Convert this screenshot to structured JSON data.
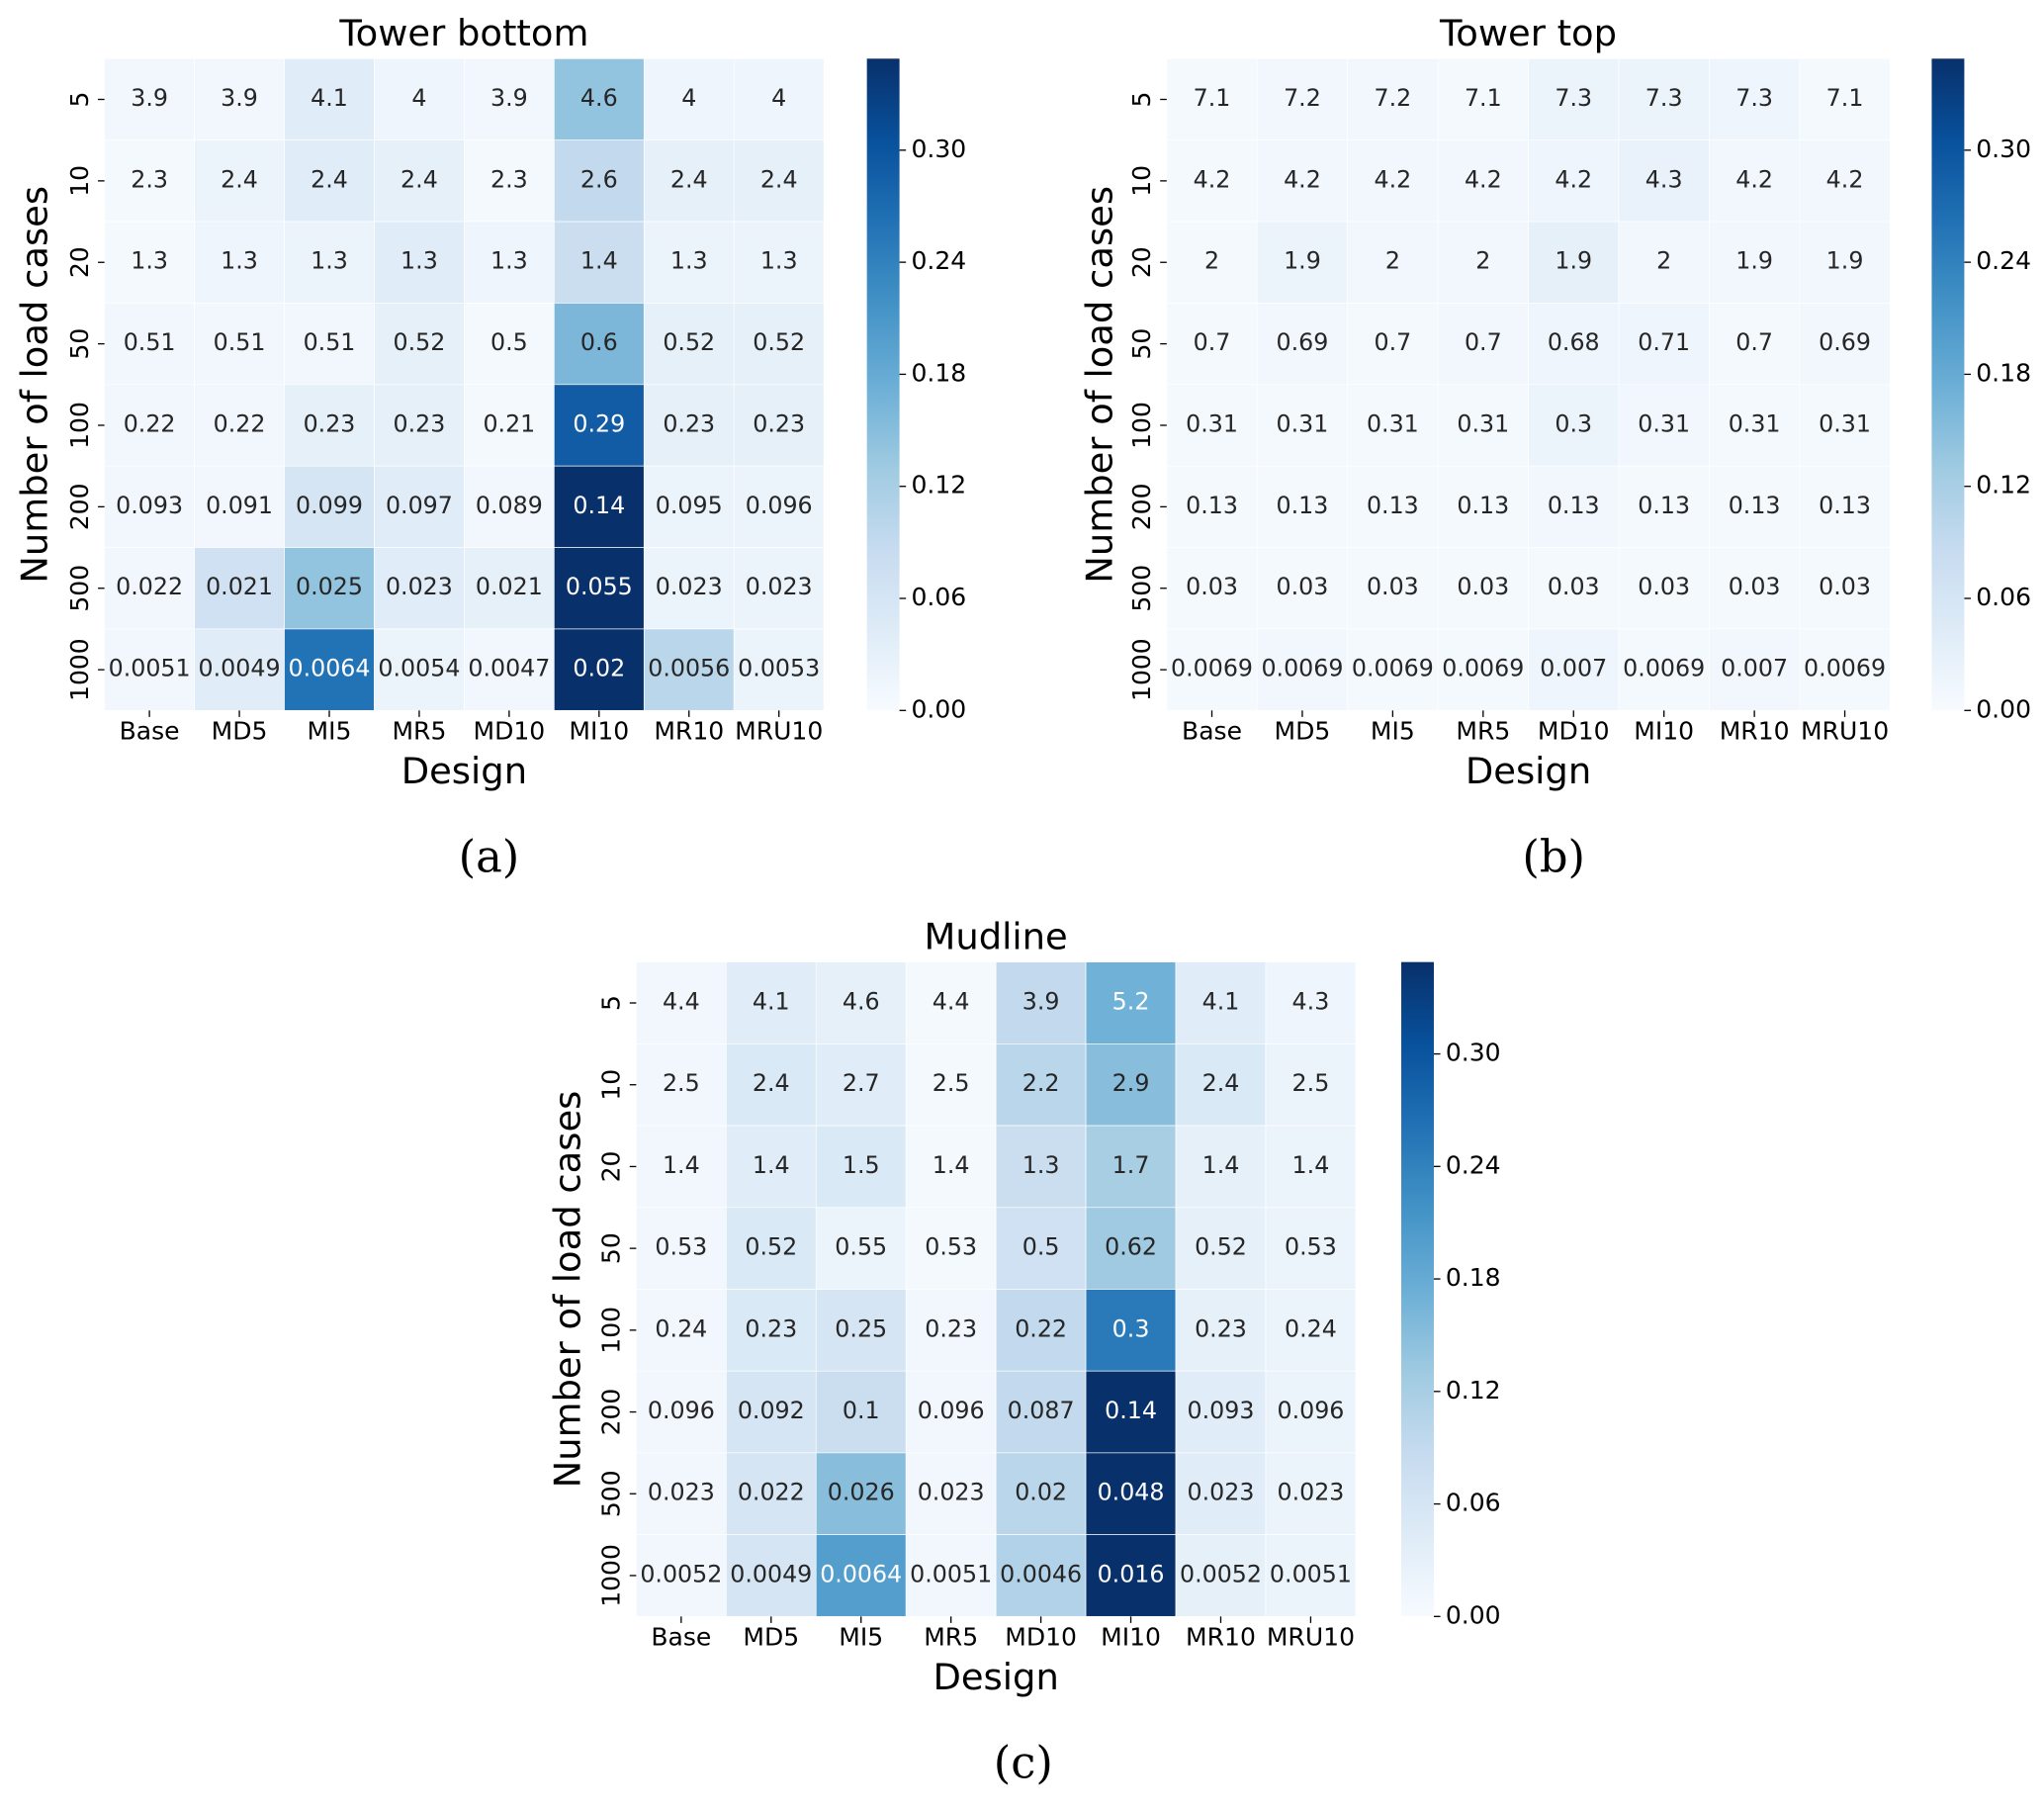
{
  "chart_data": [
    {
      "type": "heatmap",
      "title": "Tower bottom",
      "x_label": "Design",
      "y_label": "Number of load cases",
      "caption": "(a)",
      "categories": [
        "Base",
        "MD5",
        "MI5",
        "MR5",
        "MD10",
        "MI10",
        "MR10",
        "MRU10"
      ],
      "y_categories": [
        "5",
        "10",
        "20",
        "50",
        "100",
        "200",
        "500",
        "1000"
      ],
      "values": [
        [
          3.9,
          3.9,
          4.1,
          4,
          3.9,
          4.6,
          4,
          4
        ],
        [
          2.3,
          2.4,
          2.4,
          2.4,
          2.3,
          2.6,
          2.4,
          2.4
        ],
        [
          1.3,
          1.3,
          1.3,
          1.3,
          1.3,
          1.4,
          1.3,
          1.3
        ],
        [
          0.51,
          0.51,
          0.51,
          0.52,
          0.5,
          0.6,
          0.52,
          0.52
        ],
        [
          0.22,
          0.22,
          0.23,
          0.23,
          0.21,
          0.29,
          0.23,
          0.23
        ],
        [
          0.093,
          0.091,
          0.099,
          0.097,
          0.089,
          0.14,
          0.095,
          0.096
        ],
        [
          0.022,
          0.021,
          0.025,
          0.023,
          0.021,
          0.055,
          0.023,
          0.023
        ],
        [
          0.0051,
          0.0049,
          0.0064,
          0.0054,
          0.0047,
          0.02,
          0.0056,
          0.0053
        ]
      ],
      "color_values": [
        [
          0.01,
          0.01,
          0.04,
          0.015,
          0.01,
          0.14,
          0.015,
          0.015
        ],
        [
          0.005,
          0.02,
          0.04,
          0.03,
          0.005,
          0.09,
          0.03,
          0.03
        ],
        [
          0.005,
          0.015,
          0.02,
          0.04,
          0.015,
          0.08,
          0.02,
          0.02
        ],
        [
          0.01,
          0.01,
          0.01,
          0.03,
          0.005,
          0.16,
          0.03,
          0.03
        ],
        [
          0.01,
          0.01,
          0.03,
          0.03,
          0.005,
          0.29,
          0.03,
          0.03
        ],
        [
          0.01,
          0.01,
          0.06,
          0.04,
          0.01,
          0.35,
          0.02,
          0.02
        ],
        [
          0.01,
          0.07,
          0.14,
          0.04,
          0.03,
          0.35,
          0.02,
          0.02
        ],
        [
          0.01,
          0.04,
          0.26,
          0.02,
          0.01,
          0.35,
          0.1,
          0.02
        ]
      ],
      "clim": [
        0,
        0.349
      ],
      "cticks": [
        {
          "value": 0,
          "label": "0.00"
        },
        0.06,
        0.12,
        0.18,
        0.24,
        {
          "value": 0.3,
          "label": "0.30"
        }
      ],
      "colormap": [
        "#f7fbff",
        "#deebf7",
        "#c6dbef",
        "#9ecae1",
        "#6baed6",
        "#4292c6",
        "#2171b5",
        "#08519c",
        "#08306b"
      ]
    },
    {
      "type": "heatmap",
      "title": "Tower top",
      "x_label": "Design",
      "y_label": "Number of load cases",
      "caption": "(b)",
      "categories": [
        "Base",
        "MD5",
        "MI5",
        "MR5",
        "MD10",
        "MI10",
        "MR10",
        "MRU10"
      ],
      "y_categories": [
        "5",
        "10",
        "20",
        "50",
        "100",
        "200",
        "500",
        "1000"
      ],
      "values": [
        [
          7.1,
          7.2,
          7.2,
          7.1,
          7.3,
          7.3,
          7.3,
          7.1
        ],
        [
          4.2,
          4.2,
          4.2,
          4.2,
          4.2,
          4.3,
          4.2,
          4.2
        ],
        [
          2,
          1.9,
          2,
          2,
          1.9,
          2,
          1.9,
          1.9
        ],
        [
          0.7,
          0.69,
          0.7,
          0.7,
          0.68,
          0.71,
          0.7,
          0.69
        ],
        [
          0.31,
          0.31,
          0.31,
          0.31,
          0.3,
          0.31,
          0.31,
          0.31
        ],
        [
          0.13,
          0.13,
          0.13,
          0.13,
          0.13,
          0.13,
          0.13,
          0.13
        ],
        [
          0.03,
          0.03,
          0.03,
          0.03,
          0.03,
          0.03,
          0.03,
          0.03
        ],
        [
          0.0069,
          0.0069,
          0.0069,
          0.0069,
          0.007,
          0.0069,
          0.007,
          0.0069
        ]
      ],
      "color_values": [
        [
          0.005,
          0.01,
          0.01,
          0.005,
          0.02,
          0.02,
          0.015,
          0.005
        ],
        [
          0.005,
          0.01,
          0.01,
          0.01,
          0.015,
          0.025,
          0.01,
          0.01
        ],
        [
          0.005,
          0.02,
          0.01,
          0.01,
          0.03,
          0.01,
          0.01,
          0.01
        ],
        [
          0.005,
          0.01,
          0.005,
          0.01,
          0.015,
          0.015,
          0.005,
          0.01
        ],
        [
          0.005,
          0.005,
          0.005,
          0.005,
          0.02,
          0.01,
          0.005,
          0.005
        ],
        [
          0.005,
          0.005,
          0.005,
          0.005,
          0.01,
          0.005,
          0.005,
          0.005
        ],
        [
          0.005,
          0.005,
          0.005,
          0.005,
          0.005,
          0.005,
          0.005,
          0.005
        ],
        [
          0.005,
          0.01,
          0.005,
          0.005,
          0.015,
          0.005,
          0.01,
          0.005
        ]
      ],
      "clim": [
        0,
        0.349
      ],
      "cticks": [
        {
          "value": 0,
          "label": "0.00"
        },
        0.06,
        0.12,
        0.18,
        0.24,
        {
          "value": 0.3,
          "label": "0.30"
        }
      ],
      "colormap": [
        "#f7fbff",
        "#deebf7",
        "#c6dbef",
        "#9ecae1",
        "#6baed6",
        "#4292c6",
        "#2171b5",
        "#08519c",
        "#08306b"
      ]
    },
    {
      "type": "heatmap",
      "title": "Mudline",
      "x_label": "Design",
      "y_label": "Number of load cases",
      "caption": "(c)",
      "categories": [
        "Base",
        "MD5",
        "MI5",
        "MR5",
        "MD10",
        "MI10",
        "MR10",
        "MRU10"
      ],
      "y_categories": [
        "5",
        "10",
        "20",
        "50",
        "100",
        "200",
        "500",
        "1000"
      ],
      "values": [
        [
          4.4,
          4.1,
          4.6,
          4.4,
          3.9,
          5.2,
          4.1,
          4.3
        ],
        [
          2.5,
          2.4,
          2.7,
          2.5,
          2.2,
          2.9,
          2.4,
          2.5
        ],
        [
          1.4,
          1.4,
          1.5,
          1.4,
          1.3,
          1.7,
          1.4,
          1.4
        ],
        [
          0.53,
          0.52,
          0.55,
          0.53,
          0.5,
          0.62,
          0.52,
          0.53
        ],
        [
          0.24,
          0.23,
          0.25,
          0.23,
          0.22,
          0.3,
          0.23,
          0.24
        ],
        [
          0.096,
          0.092,
          0.1,
          0.096,
          0.087,
          0.14,
          0.093,
          0.096
        ],
        [
          0.023,
          0.022,
          0.026,
          0.023,
          0.02,
          0.048,
          0.023,
          0.023
        ],
        [
          0.0052,
          0.0049,
          0.0064,
          0.0051,
          0.0046,
          0.016,
          0.0052,
          0.0051
        ]
      ],
      "color_values": [
        [
          0.01,
          0.04,
          0.03,
          0.005,
          0.09,
          0.17,
          0.04,
          0.015
        ],
        [
          0.01,
          0.05,
          0.04,
          0.005,
          0.1,
          0.15,
          0.05,
          0.02
        ],
        [
          0.01,
          0.04,
          0.05,
          0.005,
          0.08,
          0.12,
          0.03,
          0.02
        ],
        [
          0.01,
          0.05,
          0.02,
          0.005,
          0.07,
          0.13,
          0.03,
          0.02
        ],
        [
          0.01,
          0.05,
          0.06,
          0.01,
          0.09,
          0.25,
          0.03,
          0.02
        ],
        [
          0.01,
          0.06,
          0.08,
          0.01,
          0.09,
          0.35,
          0.04,
          0.02
        ],
        [
          0.01,
          0.06,
          0.15,
          0.01,
          0.1,
          0.35,
          0.04,
          0.02
        ],
        [
          0.01,
          0.06,
          0.2,
          0.01,
          0.11,
          0.35,
          0.03,
          0.02
        ]
      ],
      "clim": [
        0,
        0.349
      ],
      "cticks": [
        {
          "value": 0,
          "label": "0.00"
        },
        0.06,
        0.12,
        0.18,
        0.24,
        {
          "value": 0.3,
          "label": "0.30"
        }
      ],
      "colormap": [
        "#f7fbff",
        "#deebf7",
        "#c6dbef",
        "#9ecae1",
        "#6baed6",
        "#4292c6",
        "#2171b5",
        "#08519c",
        "#08306b"
      ]
    }
  ]
}
